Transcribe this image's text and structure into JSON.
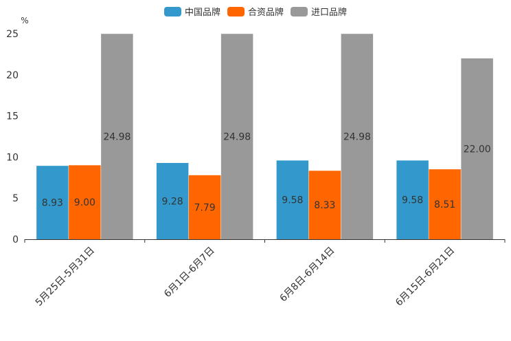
{
  "chart_data": {
    "type": "bar",
    "title": "",
    "xlabel": "",
    "ylabel": "%",
    "ylim": [
      0,
      25
    ],
    "yticks": [
      "0",
      "5",
      "10",
      "15",
      "20",
      "25"
    ],
    "categories": [
      "5月25日-5月31日",
      "6月1日-6月7日",
      "6月8日-6月14日",
      "6月15日-6月21日"
    ],
    "series": [
      {
        "name": "中国品牌",
        "color": "#3399cc",
        "values": [
          8.93,
          9.28,
          9.58,
          9.58
        ],
        "labels": [
          "8.93",
          "9.28",
          "9.58",
          "9.58"
        ]
      },
      {
        "name": "合资品牌",
        "color": "#ff6600",
        "values": [
          9.0,
          7.79,
          8.33,
          8.51
        ],
        "labels": [
          "9.00",
          "7.79",
          "8.33",
          "8.51"
        ]
      },
      {
        "name": "进口品牌",
        "color": "#999999",
        "values": [
          24.98,
          24.98,
          24.98,
          22.0
        ],
        "labels": [
          "24.98",
          "24.98",
          "24.98",
          "22.00"
        ]
      }
    ],
    "legend_position": "top-center",
    "grid": false
  }
}
